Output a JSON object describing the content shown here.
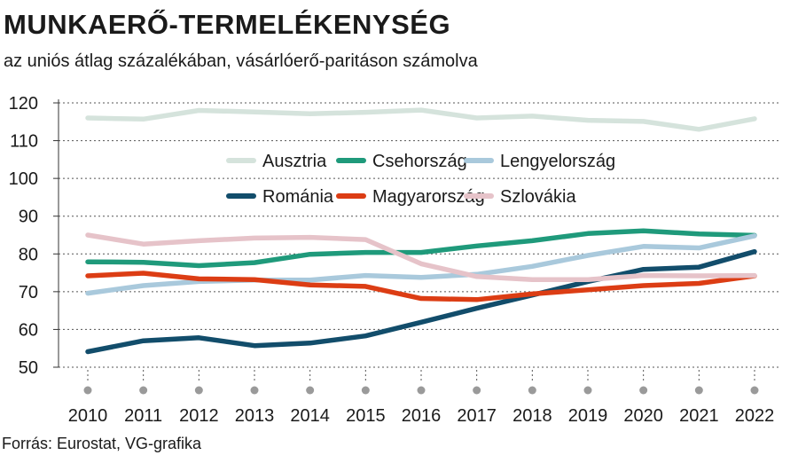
{
  "title": "MUNKAERŐ-TERMELÉKENYSÉG",
  "subtitle": "az uniós átlag százalékában, vásárlóerő-paritáson számolva",
  "source": "Forrás: Eurostat, VG-grafika",
  "chart_data": {
    "type": "line",
    "title": "MUNKAERŐ-TERMELÉKENYSÉG",
    "subtitle": "az uniós átlag százalékában, vásárlóerő-paritáson számolva",
    "xlabel": "",
    "ylabel": "",
    "ylim": [
      50,
      120
    ],
    "yticks": [
      50,
      60,
      70,
      80,
      90,
      100,
      110,
      120
    ],
    "grid": "horizontal dashed",
    "legend_position": "top-center",
    "x": [
      "2010",
      "2011",
      "2012",
      "2013",
      "2014",
      "2015",
      "2016",
      "2017",
      "2018",
      "2019",
      "2020",
      "2021",
      "2022"
    ],
    "series": [
      {
        "name": "Ausztria",
        "color": "#d5e3dc",
        "values": [
          116,
          115.7,
          118,
          117.6,
          117.1,
          117.5,
          118.1,
          116,
          116.5,
          115.4,
          115.1,
          113,
          115.8
        ]
      },
      {
        "name": "Csehország",
        "color": "#1f9a7b",
        "values": [
          77.9,
          77.8,
          76.9,
          77.7,
          79.9,
          80.4,
          80.4,
          82.1,
          83.5,
          85.4,
          86.1,
          85.3,
          84.9
        ]
      },
      {
        "name": "Lengyelország",
        "color": "#a9c9dc",
        "values": [
          69.6,
          71.6,
          72.7,
          73.1,
          73.1,
          74.3,
          73.8,
          74.6,
          76.7,
          79.6,
          82,
          81.6,
          84.8
        ]
      },
      {
        "name": "Románia",
        "color": "#124d6b",
        "values": [
          54.1,
          57,
          57.8,
          55.7,
          56.4,
          58.3,
          61.9,
          65.6,
          69.1,
          72.7,
          75.9,
          76.5,
          80.6
        ]
      },
      {
        "name": "Magyarország",
        "color": "#dc3d14",
        "values": [
          74.2,
          74.9,
          73.4,
          73.2,
          71.8,
          71.4,
          68.2,
          67.9,
          69.4,
          70.5,
          71.6,
          72.2,
          74.2
        ]
      },
      {
        "name": "Szlovákia",
        "color": "#e6c3c9",
        "values": [
          85,
          82.6,
          83.5,
          84.2,
          84.4,
          83.8,
          77.4,
          74,
          73.2,
          73.2,
          74.3,
          74.2,
          74.3
        ]
      }
    ]
  }
}
